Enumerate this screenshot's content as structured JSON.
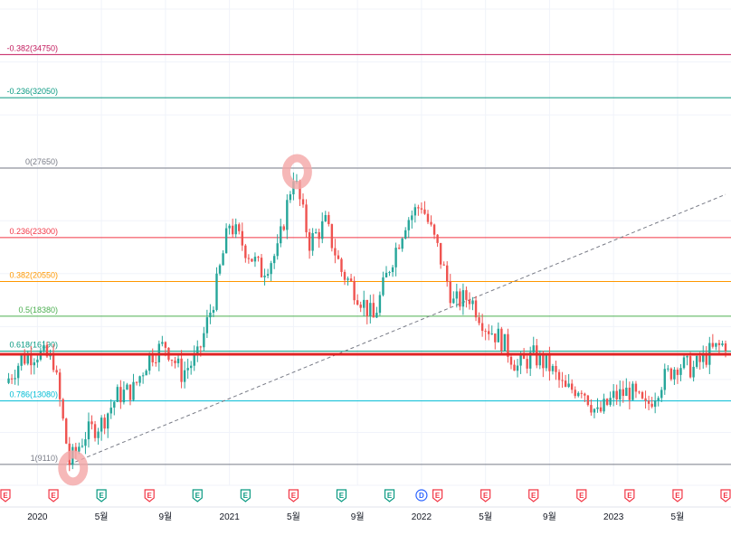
{
  "chart_data": {
    "type": "candlestick",
    "title": "",
    "grid": true,
    "colors": {
      "up": "#26a69a",
      "down": "#ef5350",
      "trendline": "#787b86",
      "support": "#e02424"
    },
    "x_axis": {
      "ticks": [
        "2020",
        "5월",
        "9월",
        "2021",
        "5월",
        "9월",
        "2022",
        "5월",
        "9월",
        "2023",
        "5월"
      ],
      "range": [
        "2019-11",
        "2023-08"
      ]
    },
    "y_range": [
      7800,
      37600
    ],
    "fibonacci": [
      {
        "level": "-0.382",
        "price": 34750,
        "label": "-0.382(34750)",
        "color": "#c2185b"
      },
      {
        "level": "-0.236",
        "price": 32050,
        "label": "-0.236(32050)",
        "color": "#089981"
      },
      {
        "level": "0",
        "price": 27650,
        "label": "0(27650)",
        "color": "#787b86"
      },
      {
        "level": "0.236",
        "price": 23300,
        "label": "0.236(23300)",
        "color": "#f23645"
      },
      {
        "level": "0.382",
        "price": 20550,
        "label": "0.382(20550)",
        "color": "#ff9800"
      },
      {
        "level": "0.5",
        "price": 18380,
        "label": "0.5(18380)",
        "color": "#4caf50"
      },
      {
        "level": "0.618",
        "price": 16190,
        "label": "0.618(16190)",
        "color": "#089981"
      },
      {
        "level": "0.786",
        "price": 13080,
        "label": "0.786(13080)",
        "color": "#00bcd4"
      },
      {
        "level": "1",
        "price": 9110,
        "label": "1(9110)",
        "color": "#787b86"
      }
    ],
    "support_line": {
      "price": 16000
    },
    "trendline": {
      "start": [
        "2020-03",
        9110
      ],
      "end": [
        "2023-08",
        26000
      ]
    },
    "highlights": [
      {
        "date": "2020-03",
        "price": 9110,
        "note": "low"
      },
      {
        "date": "2021-05",
        "price": 27650,
        "note": "high"
      }
    ],
    "price_path": [
      [
        "2019-11",
        14200
      ],
      [
        "2019-12",
        15700
      ],
      [
        "2020-01",
        16100
      ],
      [
        "2020-02",
        15600
      ],
      [
        "2020-03",
        9200
      ],
      [
        "2020-04",
        11000
      ],
      [
        "2020-05",
        11700
      ],
      [
        "2020-06",
        13400
      ],
      [
        "2020-07",
        13800
      ],
      [
        "2020-08",
        15900
      ],
      [
        "2020-09",
        16600
      ],
      [
        "2020-10",
        14800
      ],
      [
        "2020-11",
        15800
      ],
      [
        "2020-12",
        19400
      ],
      [
        "2021-01",
        24200
      ],
      [
        "2021-02",
        22600
      ],
      [
        "2021-03",
        21200
      ],
      [
        "2021-04",
        22400
      ],
      [
        "2021-05",
        27300
      ],
      [
        "2021-06",
        23000
      ],
      [
        "2021-07",
        24200
      ],
      [
        "2021-08",
        21200
      ],
      [
        "2021-09",
        19800
      ],
      [
        "2021-10",
        18200
      ],
      [
        "2021-11",
        21500
      ],
      [
        "2021-12",
        24300
      ],
      [
        "2022-01",
        25400
      ],
      [
        "2022-02",
        22600
      ],
      [
        "2022-03",
        19200
      ],
      [
        "2022-04",
        19600
      ],
      [
        "2022-05",
        17800
      ],
      [
        "2022-06",
        16900
      ],
      [
        "2022-07",
        15200
      ],
      [
        "2022-08",
        15900
      ],
      [
        "2022-09",
        15200
      ],
      [
        "2022-10",
        13700
      ],
      [
        "2022-11",
        14000
      ],
      [
        "2022-12",
        12200
      ],
      [
        "2023-01",
        13300
      ],
      [
        "2023-02",
        13700
      ],
      [
        "2023-03",
        12600
      ],
      [
        "2023-04",
        14300
      ],
      [
        "2023-05",
        15400
      ],
      [
        "2023-06",
        15100
      ],
      [
        "2023-07",
        16100
      ],
      [
        "2023-08",
        16700
      ]
    ],
    "events": [
      {
        "date": "2019-11",
        "type": "E",
        "color": "#f23645"
      },
      {
        "date": "2020-02",
        "type": "E",
        "color": "#f23645"
      },
      {
        "date": "2020-05",
        "type": "E",
        "color": "#089981"
      },
      {
        "date": "2020-08",
        "type": "E",
        "color": "#f23645"
      },
      {
        "date": "2020-11",
        "type": "E",
        "color": "#089981"
      },
      {
        "date": "2021-02",
        "type": "E",
        "color": "#089981"
      },
      {
        "date": "2021-05",
        "type": "E",
        "color": "#f23645"
      },
      {
        "date": "2021-08",
        "type": "E",
        "color": "#089981"
      },
      {
        "date": "2021-11",
        "type": "E",
        "color": "#089981"
      },
      {
        "date": "2022-01",
        "type": "D",
        "color": "#2962ff"
      },
      {
        "date": "2022-02",
        "type": "E",
        "color": "#f23645"
      },
      {
        "date": "2022-05",
        "type": "E",
        "color": "#f23645"
      },
      {
        "date": "2022-08",
        "type": "E",
        "color": "#f23645"
      },
      {
        "date": "2022-11",
        "type": "E",
        "color": "#f23645"
      },
      {
        "date": "2023-02",
        "type": "E",
        "color": "#f23645"
      },
      {
        "date": "2023-05",
        "type": "E",
        "color": "#f23645"
      },
      {
        "date": "2023-08",
        "type": "E",
        "color": "#f23645"
      }
    ]
  }
}
